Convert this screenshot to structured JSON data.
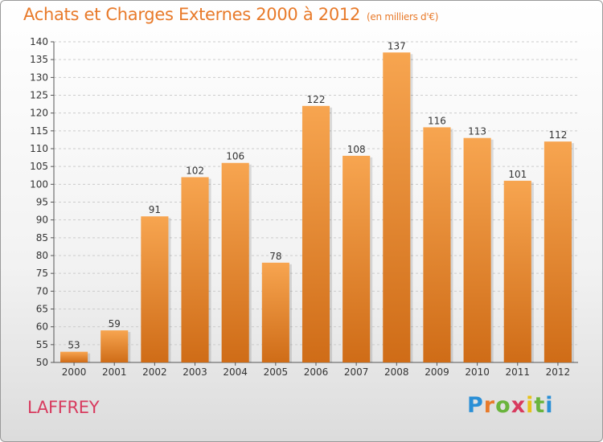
{
  "title": "Achats et Charges Externes 2000 à 2012",
  "subtitle": "(en milliers d'€)",
  "commune": "LAFFREY",
  "logo": {
    "text": "Proxiti",
    "letters": [
      "P",
      "r",
      "o",
      "x",
      "i",
      "t",
      "i"
    ],
    "letter_colors": [
      "#2a8fd6",
      "#e87a2a",
      "#6ab43c",
      "#d83a5e",
      "#e8c21a",
      "#6ab43c",
      "#2a8fd6"
    ]
  },
  "colors": {
    "title": "#e87a2a",
    "commune": "#d83a5e",
    "bar_top": "#f7a550",
    "bar_bottom": "#cf6c17",
    "grid": "#cccccc"
  },
  "chart_data": {
    "type": "bar",
    "categories": [
      "2000",
      "2001",
      "2002",
      "2003",
      "2004",
      "2005",
      "2006",
      "2007",
      "2008",
      "2009",
      "2010",
      "2011",
      "2012"
    ],
    "values": [
      53,
      59,
      91,
      102,
      106,
      78,
      122,
      108,
      137,
      116,
      113,
      101,
      112
    ],
    "ylim": [
      50,
      140
    ],
    "yticks": [
      50,
      55,
      60,
      65,
      70,
      75,
      80,
      85,
      90,
      95,
      100,
      105,
      110,
      115,
      120,
      125,
      130,
      135,
      140
    ],
    "grid": "horizontal dashed",
    "data_labels": true
  }
}
